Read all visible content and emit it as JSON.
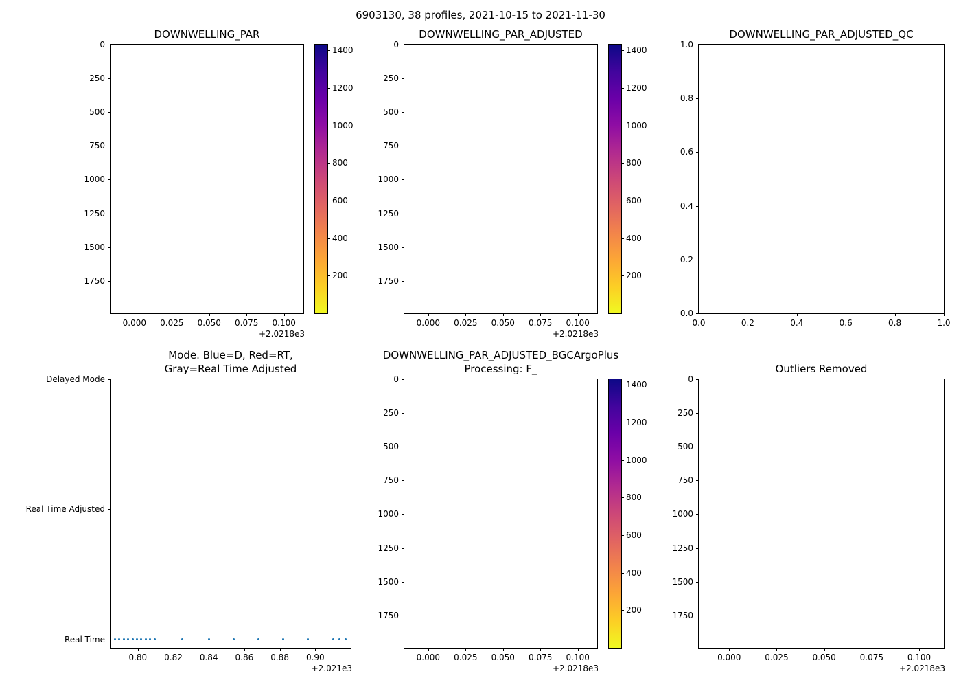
{
  "figure": {
    "suptitle": "6903130, 38 profiles, 2021-10-15 to 2021-11-30",
    "background": "#ffffff",
    "grid": {
      "rows": 2,
      "cols": 3
    }
  },
  "colors": {
    "spine": "#000000",
    "text": "#000000",
    "marker_blue": "#1f77b4",
    "plasma_r_stops": [
      "#0d0887",
      "#41049d",
      "#6a00a8",
      "#8f0da4",
      "#b12a90",
      "#cc4778",
      "#e16462",
      "#f2844b",
      "#fca636",
      "#fcce25",
      "#f0f921"
    ]
  },
  "chart_data": [
    {
      "id": "downwelling-par",
      "type": "heatmap",
      "title": "DOWNWELLING_PAR",
      "xlabel": "",
      "ylabel": "",
      "xlim": [
        2021.784,
        2021.913
      ],
      "xtick_values": [
        2021.8,
        2021.825,
        2021.85,
        2021.875,
        2021.9
      ],
      "xtick_labels": [
        "0.000",
        "0.025",
        "0.050",
        "0.075",
        "0.100"
      ],
      "x_offset_text": "+2.0218e3",
      "ylim": [
        0,
        1990
      ],
      "y_inverted": true,
      "ytick_values": [
        0,
        250,
        500,
        750,
        1000,
        1250,
        1500,
        1750
      ],
      "ytick_labels": [
        "0",
        "250",
        "500",
        "750",
        "1000",
        "1250",
        "1500",
        "1750"
      ],
      "grid": false,
      "series": [],
      "colorbar": {
        "colormap": "plasma_r",
        "range": [
          0,
          1430
        ],
        "tick_values": [
          200,
          400,
          600,
          800,
          1000,
          1200,
          1400
        ],
        "tick_labels": [
          "200",
          "400",
          "600",
          "800",
          "1000",
          "1200",
          "1400"
        ]
      }
    },
    {
      "id": "downwelling-par-adjusted",
      "type": "heatmap",
      "title": "DOWNWELLING_PAR_ADJUSTED",
      "xlabel": "",
      "ylabel": "",
      "xlim": [
        2021.784,
        2021.913
      ],
      "xtick_values": [
        2021.8,
        2021.825,
        2021.85,
        2021.875,
        2021.9
      ],
      "xtick_labels": [
        "0.000",
        "0.025",
        "0.050",
        "0.075",
        "0.100"
      ],
      "x_offset_text": "+2.0218e3",
      "ylim": [
        0,
        1990
      ],
      "y_inverted": true,
      "ytick_values": [
        0,
        250,
        500,
        750,
        1000,
        1250,
        1500,
        1750
      ],
      "ytick_labels": [
        "0",
        "250",
        "500",
        "750",
        "1000",
        "1250",
        "1500",
        "1750"
      ],
      "grid": false,
      "series": [],
      "colorbar": {
        "colormap": "plasma_r",
        "range": [
          0,
          1430
        ],
        "tick_values": [
          200,
          400,
          600,
          800,
          1000,
          1200,
          1400
        ],
        "tick_labels": [
          "200",
          "400",
          "600",
          "800",
          "1000",
          "1200",
          "1400"
        ]
      }
    },
    {
      "id": "downwelling-par-adjusted-qc",
      "type": "scatter",
      "title": "DOWNWELLING_PAR_ADJUSTED_QC",
      "xlabel": "",
      "ylabel": "",
      "xlim": [
        0.0,
        1.0
      ],
      "xtick_values": [
        0.0,
        0.2,
        0.4,
        0.6,
        0.8,
        1.0
      ],
      "xtick_labels": [
        "0.0",
        "0.2",
        "0.4",
        "0.6",
        "0.8",
        "1.0"
      ],
      "x_offset_text": "",
      "ylim": [
        0.0,
        1.0
      ],
      "y_inverted": false,
      "ytick_values": [
        0.0,
        0.2,
        0.4,
        0.6,
        0.8,
        1.0
      ],
      "ytick_labels": [
        "0.0",
        "0.2",
        "0.4",
        "0.6",
        "0.8",
        "1.0"
      ],
      "grid": false,
      "series": []
    },
    {
      "id": "mode",
      "type": "scatter",
      "title": "Mode. Blue=D, Red=RT,\nGray=Real Time Adjusted",
      "xlabel": "",
      "ylabel": "",
      "xlim": [
        2021.7846,
        2021.92
      ],
      "xtick_values": [
        2021.8,
        2021.82,
        2021.84,
        2021.86,
        2021.88,
        2021.9
      ],
      "xtick_labels": [
        "0.80",
        "0.82",
        "0.84",
        "0.86",
        "0.88",
        "0.90"
      ],
      "x_offset_text": "+2.021e3",
      "ylim": [
        -0.065,
        2.0
      ],
      "y_inverted": false,
      "ytick_values": [
        0,
        1,
        2
      ],
      "ytick_labels": [
        "Real Time",
        "Real Time Adjusted",
        "Delayed Mode"
      ],
      "grid": false,
      "legend_note": "Blue=D, Red=RT, Gray=Real Time Adjusted",
      "series": [
        {
          "name": "Real Time",
          "color": "#1f77b4",
          "marker": "point",
          "y": 0,
          "x": [
            2021.787,
            2021.7895,
            2021.792,
            2021.7945,
            2021.797,
            2021.7995,
            2021.802,
            2021.8045,
            2021.807,
            2021.8095,
            2021.825,
            2021.84,
            2021.854,
            2021.868,
            2021.882,
            2021.896,
            2021.91,
            2021.9135,
            2021.917
          ]
        }
      ]
    },
    {
      "id": "downwelling-par-adjusted-bgcargoplus",
      "type": "heatmap",
      "title": "DOWNWELLING_PAR_ADJUSTED_BGCArgoPlus\nProcessing: F_",
      "xlabel": "",
      "ylabel": "",
      "xlim": [
        2021.784,
        2021.913
      ],
      "xtick_values": [
        2021.8,
        2021.825,
        2021.85,
        2021.875,
        2021.9
      ],
      "xtick_labels": [
        "0.000",
        "0.025",
        "0.050",
        "0.075",
        "0.100"
      ],
      "x_offset_text": "+2.0218e3",
      "ylim": [
        0,
        1990
      ],
      "y_inverted": true,
      "ytick_values": [
        0,
        250,
        500,
        750,
        1000,
        1250,
        1500,
        1750
      ],
      "ytick_labels": [
        "0",
        "250",
        "500",
        "750",
        "1000",
        "1250",
        "1500",
        "1750"
      ],
      "grid": false,
      "series": [],
      "colorbar": {
        "colormap": "plasma_r",
        "range": [
          0,
          1430
        ],
        "tick_values": [
          200,
          400,
          600,
          800,
          1000,
          1200,
          1400
        ],
        "tick_labels": [
          "200",
          "400",
          "600",
          "800",
          "1000",
          "1200",
          "1400"
        ]
      }
    },
    {
      "id": "outliers-removed",
      "type": "heatmap",
      "title": "Outliers Removed",
      "xlabel": "",
      "ylabel": "",
      "xlim": [
        2021.784,
        2021.913
      ],
      "xtick_values": [
        2021.8,
        2021.825,
        2021.85,
        2021.875,
        2021.9
      ],
      "xtick_labels": [
        "0.000",
        "0.025",
        "0.050",
        "0.075",
        "0.100"
      ],
      "x_offset_text": "+2.0218e3",
      "ylim": [
        0,
        1990
      ],
      "y_inverted": true,
      "ytick_values": [
        0,
        250,
        500,
        750,
        1000,
        1250,
        1500,
        1750
      ],
      "ytick_labels": [
        "0",
        "250",
        "500",
        "750",
        "1000",
        "1250",
        "1500",
        "1750"
      ],
      "grid": false,
      "series": []
    }
  ]
}
